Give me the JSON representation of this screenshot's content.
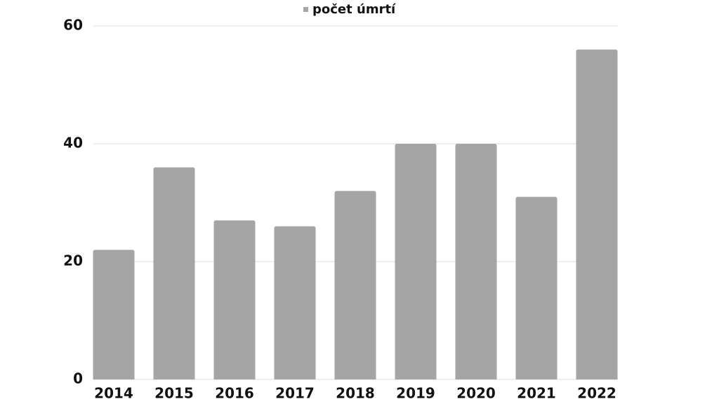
{
  "chart_data": {
    "type": "bar",
    "categories": [
      "2014",
      "2015",
      "2016",
      "2017",
      "2018",
      "2019",
      "2020",
      "2021",
      "2022"
    ],
    "series": [
      {
        "name": "počet úmrtí",
        "color": "#a5a5a5",
        "values": [
          22,
          36,
          27,
          26,
          32,
          40,
          40,
          31,
          56
        ]
      }
    ],
    "ylim": [
      0,
      60
    ],
    "yticks": [
      0,
      20,
      40,
      60
    ],
    "grid": true,
    "legend": "top"
  }
}
